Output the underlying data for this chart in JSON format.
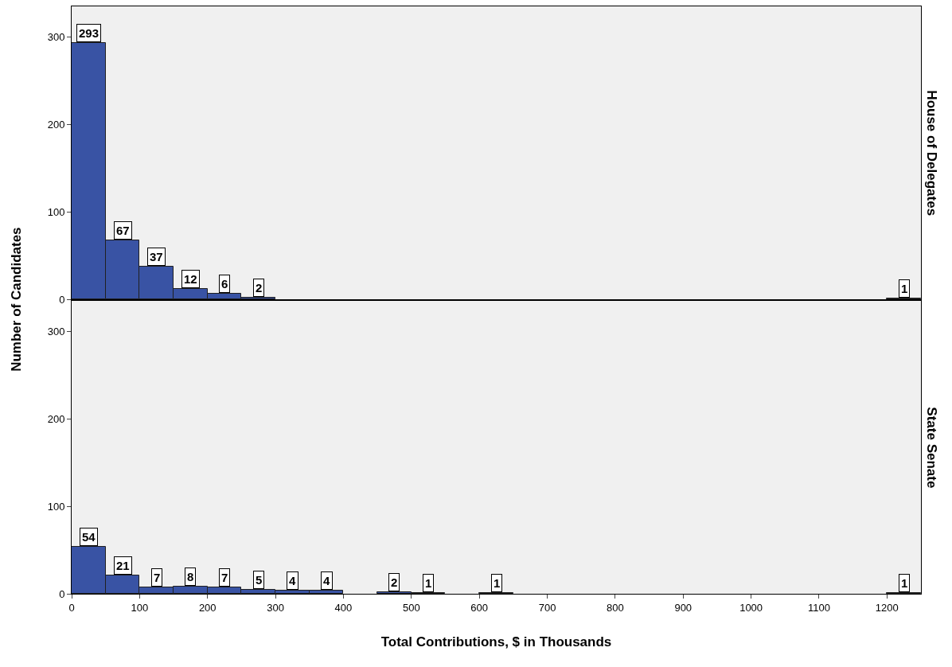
{
  "chart_data": [
    {
      "type": "histogram",
      "title": "House of Delegates",
      "ylabel": "Number of Candidates",
      "color": "#3953a4",
      "bins": [
        0,
        50,
        100,
        150,
        200,
        250,
        300,
        350,
        400,
        450,
        500,
        550,
        600,
        650,
        700,
        750,
        800,
        850,
        900,
        950,
        1000,
        1050,
        1100,
        1150,
        1200,
        1250
      ],
      "values": [
        293,
        67,
        37,
        12,
        6,
        2,
        0,
        0,
        0,
        0,
        0,
        0,
        0,
        0,
        0,
        0,
        0,
        0,
        0,
        0,
        0,
        0,
        0,
        0,
        1
      ],
      "value_labels": [
        "293",
        "67",
        "37",
        "12",
        "6",
        "2",
        null,
        null,
        null,
        null,
        null,
        null,
        null,
        null,
        null,
        null,
        null,
        null,
        null,
        null,
        null,
        null,
        null,
        null,
        "1"
      ],
      "xlim": [
        0,
        1250
      ],
      "xticks": [
        0,
        100,
        200,
        300,
        400,
        500,
        600,
        700,
        800,
        900,
        1000,
        1100,
        1200
      ],
      "ylim": [
        0,
        335
      ],
      "yticks": [
        0,
        100,
        200,
        300
      ],
      "tick_labels": "y"
    },
    {
      "type": "histogram",
      "title": "State Senate",
      "xlabel": "Total Contributions, $ in Thousands",
      "color": "#3953a4",
      "bins": [
        0,
        50,
        100,
        150,
        200,
        250,
        300,
        350,
        400,
        450,
        500,
        550,
        600,
        650,
        700,
        750,
        800,
        850,
        900,
        950,
        1000,
        1050,
        1100,
        1150,
        1200,
        1250
      ],
      "values": [
        54,
        21,
        7,
        8,
        7,
        5,
        4,
        4,
        0,
        2,
        1,
        0,
        1,
        0,
        0,
        0,
        0,
        0,
        0,
        0,
        0,
        0,
        0,
        0,
        1
      ],
      "value_labels": [
        "54",
        "21",
        "7",
        "8",
        "7",
        "5",
        "4",
        "4",
        null,
        "2",
        "1",
        null,
        "1",
        null,
        null,
        null,
        null,
        null,
        null,
        null,
        null,
        null,
        null,
        null,
        "1"
      ],
      "xlim": [
        0,
        1250
      ],
      "xticks": [
        0,
        100,
        200,
        300,
        400,
        500,
        600,
        700,
        800,
        900,
        1000,
        1100,
        1200
      ],
      "ylim": [
        0,
        335
      ],
      "yticks": [
        0,
        100,
        200,
        300
      ]
    }
  ]
}
